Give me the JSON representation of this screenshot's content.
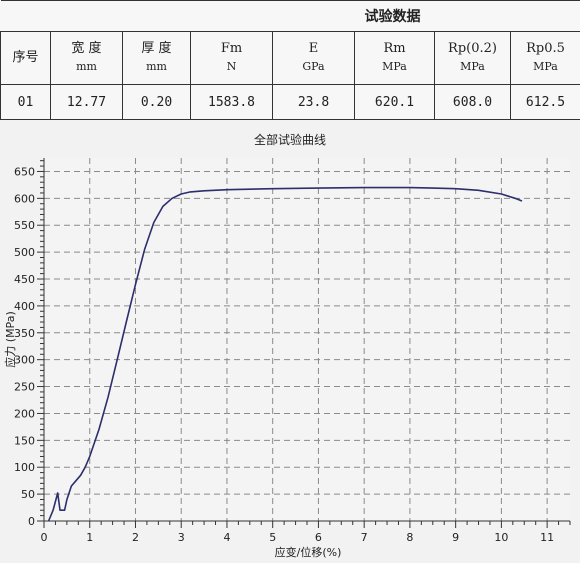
{
  "table": {
    "title": "试验数据",
    "headers": [
      {
        "name": "序号",
        "unit": ""
      },
      {
        "name": "宽 度",
        "unit": "mm"
      },
      {
        "name": "厚 度",
        "unit": "mm"
      },
      {
        "name": "Fm",
        "unit": "N"
      },
      {
        "name": "E",
        "unit": "GPa"
      },
      {
        "name": "Rm",
        "unit": "MPa"
      },
      {
        "name": "Rp(0.2)",
        "unit": "MPa"
      },
      {
        "name": "Rp0.5",
        "unit": "MPa"
      }
    ],
    "rows": [
      [
        "01",
        "12.77",
        "0.20",
        "1583.8",
        "23.8",
        "620.1",
        "608.0",
        "612.5"
      ]
    ]
  },
  "chart_data": {
    "type": "line",
    "title": "全部试验曲线",
    "xlabel": "应变/位移(%)",
    "ylabel": "应力 (MPa)",
    "xlim": [
      0,
      11.5
    ],
    "ylim": [
      0,
      675
    ],
    "xticks": [
      0,
      1,
      2,
      3,
      4,
      5,
      6,
      7,
      8,
      9,
      10,
      11
    ],
    "yticks": [
      0,
      50,
      100,
      150,
      200,
      250,
      300,
      350,
      400,
      450,
      500,
      550,
      600,
      650
    ],
    "grid": true,
    "line_color": "#2b2f6b",
    "series": [
      {
        "x": [
          0.1,
          0.2,
          0.3,
          0.35,
          0.45,
          0.5,
          0.6,
          0.7,
          0.8,
          0.9,
          1.0,
          1.2,
          1.4,
          1.6,
          1.8,
          2.0,
          2.2,
          2.4,
          2.6,
          2.8,
          3.0,
          3.2,
          3.5,
          4.0,
          5.0,
          6.0,
          7.0,
          8.0,
          8.5,
          9.0,
          9.5,
          10.0,
          10.3,
          10.45
        ],
        "y": [
          0,
          20,
          52,
          20,
          20,
          40,
          65,
          75,
          85,
          100,
          120,
          170,
          230,
          300,
          370,
          440,
          505,
          555,
          585,
          600,
          608,
          612,
          614,
          616,
          618,
          619,
          620,
          620,
          619,
          618,
          615,
          608,
          600,
          595
        ]
      }
    ]
  }
}
